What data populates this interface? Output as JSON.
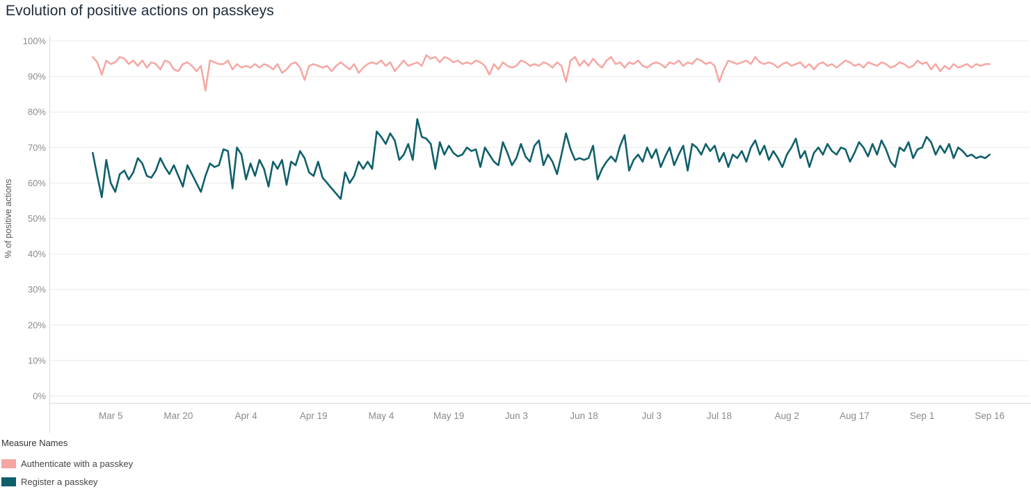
{
  "page": {
    "title": "Evolution of positive actions on passkeys"
  },
  "legend": {
    "title": "Measure Names",
    "items": [
      {
        "label": "Authenticate with a passkey",
        "color": "#f5a6a2"
      },
      {
        "label": "Register a passkey",
        "color": "#0e5f6b"
      }
    ]
  },
  "axes": {
    "ylabel": "% of positive actions"
  },
  "chart_data": {
    "type": "line",
    "title": "Evolution of positive actions on passkeys",
    "xlabel": "",
    "ylabel": "% of positive actions",
    "ylim": [
      0,
      100
    ],
    "y_ticks": [
      0,
      10,
      20,
      30,
      40,
      50,
      60,
      70,
      80,
      90,
      100
    ],
    "y_tick_labels": [
      "0%",
      "10%",
      "20%",
      "30%",
      "40%",
      "50%",
      "60%",
      "70%",
      "80%",
      "90%",
      "100%"
    ],
    "grid": true,
    "legend_position": "bottom-left",
    "x_start_date": "Mar 1",
    "x_end_date": "Sep 16",
    "x_axis_day_range": [
      -9,
      206
    ],
    "x_tick_day_index": [
      4,
      19,
      34,
      49,
      64,
      79,
      94,
      109,
      124,
      139,
      154,
      169,
      184,
      199
    ],
    "x_tick_labels": [
      "Mar 5",
      "Mar 20",
      "Apr 4",
      "Apr 19",
      "May 4",
      "May 19",
      "Jun 3",
      "Jun 18",
      "Jul 3",
      "Jul 18",
      "Aug 2",
      "Aug 17",
      "Sep 1",
      "Sep 16"
    ],
    "series": [
      {
        "name": "Authenticate with a passkey",
        "color": "#f5a6a2",
        "stroke_width": 2.5,
        "values": [
          95.5,
          94,
          90.5,
          94.5,
          93.5,
          94,
          95.5,
          95,
          93.5,
          94.5,
          93,
          94.5,
          92.5,
          94,
          93.5,
          92,
          94.5,
          94,
          92,
          91.5,
          93.5,
          94,
          93,
          91.5,
          93,
          86,
          94.5,
          94,
          93.5,
          93.5,
          94.5,
          92,
          93.5,
          92.5,
          93,
          92.5,
          93.5,
          92.5,
          93.5,
          93,
          92,
          93.5,
          91,
          92,
          93.5,
          94,
          92.5,
          89,
          93,
          93.5,
          93,
          92.5,
          93,
          91.5,
          93,
          94,
          93,
          92,
          93.5,
          91,
          92.5,
          93.5,
          94,
          93.5,
          94.5,
          93,
          94,
          91.5,
          93,
          94.5,
          93,
          93.5,
          94,
          93,
          96,
          95,
          95.5,
          94,
          95.5,
          95,
          94,
          94.5,
          93.5,
          94,
          93.5,
          94.5,
          94,
          93,
          90.5,
          93.5,
          92,
          94,
          93,
          92.5,
          93,
          94.5,
          94,
          93,
          93.5,
          93,
          94,
          93.5,
          92.5,
          94,
          93,
          88.5,
          94.5,
          95.5,
          93,
          94.5,
          93,
          95,
          93.5,
          92.5,
          94.5,
          95.5,
          93.5,
          94,
          92.5,
          94,
          93.5,
          94.5,
          93,
          92.5,
          93.5,
          94,
          93.5,
          92.5,
          94,
          93.5,
          94.5,
          93,
          94,
          93.5,
          95,
          94.5,
          93.5,
          94,
          93,
          88.5,
          92,
          94.5,
          94,
          93.5,
          94,
          94.5,
          93.5,
          95.5,
          94,
          93.5,
          94,
          93.5,
          92.5,
          93.5,
          94,
          93,
          93.5,
          94,
          92.5,
          93.5,
          92,
          93.5,
          94,
          93,
          93.5,
          92.5,
          93.5,
          94.5,
          94,
          93,
          93.5,
          92.5,
          94,
          93.5,
          93,
          94,
          93.5,
          92.5,
          93,
          94,
          93.5,
          92.5,
          93,
          94.5,
          93.5,
          94,
          92,
          93.5,
          91.5,
          93,
          92,
          93.5,
          92.5,
          93,
          93.5,
          92.5,
          93.5,
          93,
          93.5,
          93.5
        ]
      },
      {
        "name": "Register a passkey",
        "color": "#0e5f6b",
        "stroke_width": 2.6,
        "values": [
          68.5,
          62,
          56,
          66.5,
          60,
          57.5,
          62.5,
          63.5,
          61,
          63,
          67,
          65.5,
          62,
          61.5,
          63.5,
          67,
          64.5,
          62.5,
          65,
          62,
          59,
          65,
          62.5,
          60,
          57.5,
          62,
          65.5,
          64.5,
          65,
          69.5,
          69,
          58.5,
          70,
          68,
          61,
          65.5,
          62,
          66.5,
          64,
          59,
          66,
          64,
          66.5,
          59.5,
          66,
          65,
          69,
          67,
          63,
          62,
          66,
          61.5,
          60,
          58.5,
          57,
          55.5,
          63,
          60,
          62,
          66,
          64,
          66,
          64,
          74.5,
          73,
          71,
          74,
          72,
          66.5,
          68,
          71,
          66.5,
          78,
          73,
          72.5,
          71,
          64,
          71.5,
          68,
          70.5,
          68.5,
          67.5,
          68,
          70,
          69,
          69.5,
          64.5,
          70,
          68,
          66,
          65,
          71.5,
          68.5,
          65,
          67,
          71,
          67.5,
          66,
          70.5,
          72,
          65,
          68,
          66,
          62.5,
          68,
          74,
          69.5,
          66.5,
          67,
          66.5,
          67,
          70.5,
          61,
          64,
          66,
          67.5,
          66,
          70.5,
          73.5,
          63.5,
          66.5,
          68,
          66,
          70,
          67,
          69.5,
          64.5,
          67.5,
          70,
          65,
          68,
          70.5,
          63.5,
          71,
          70,
          68,
          71,
          69,
          70.5,
          66,
          68.5,
          64.5,
          68,
          67,
          69,
          66,
          70,
          72,
          68,
          70.5,
          66.5,
          69,
          67,
          64.5,
          68,
          70,
          72.5,
          67,
          69,
          64.5,
          68.5,
          70,
          68,
          71,
          69,
          68,
          70,
          69.5,
          66,
          68.5,
          71.5,
          70,
          67.5,
          71,
          68,
          72,
          69.5,
          66,
          64.5,
          70,
          69,
          71.5,
          67,
          69.5,
          70,
          73,
          71.5,
          68,
          70.5,
          68.5,
          71,
          67,
          70,
          69,
          67.5,
          68,
          67,
          67.5,
          67,
          68
        ]
      }
    ],
    "style": {
      "grid_color": "#e9e9e9",
      "axis_line_color": "#d8d8d8",
      "tick_label_color": "#8a8a8a",
      "axis_title_color": "#555555"
    }
  }
}
